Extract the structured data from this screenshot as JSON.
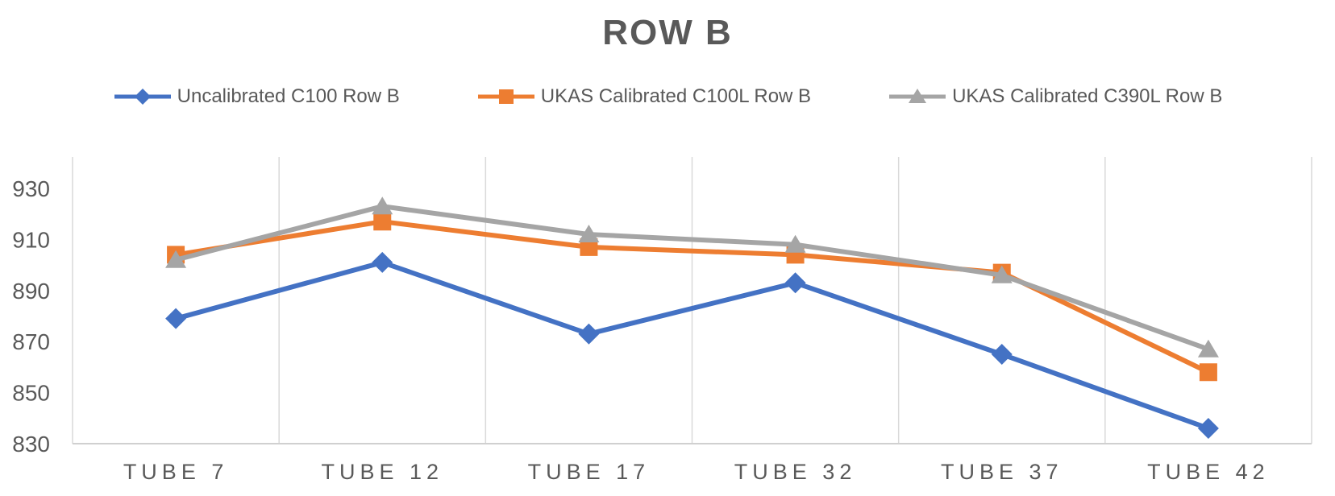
{
  "chart_data": {
    "type": "line",
    "title": "ROW B",
    "categories": [
      "TUBE 7",
      "TUBE 12",
      "TUBE 17",
      "TUBE 32",
      "TUBE 37",
      "TUBE 42"
    ],
    "series": [
      {
        "name": "Uncalibrated C100 Row B",
        "marker": "diamond",
        "color": "#4472C4",
        "values": [
          879,
          901,
          873,
          893,
          865,
          836
        ]
      },
      {
        "name": "UKAS Calibrated C100L Row B",
        "marker": "square",
        "color": "#ED7D31",
        "values": [
          904,
          917,
          907,
          904,
          897,
          858
        ]
      },
      {
        "name": "UKAS Calibrated C390L Row B",
        "marker": "triangle",
        "color": "#A5A5A5",
        "values": [
          902,
          923,
          912,
          908,
          896,
          867
        ]
      }
    ],
    "xlabel": "",
    "ylabel": "",
    "y_axis": {
      "min": 830,
      "max": 930,
      "tick_step": 20,
      "ticks": [
        830,
        850,
        870,
        890,
        910,
        930
      ]
    },
    "legend_position": "top",
    "grid": "vertical-only",
    "colors": {
      "title": "#595959",
      "axis_labels": "#595959",
      "gridlines": "#D9D9D9",
      "axis_line": "#D0D0D0",
      "background": "#FFFFFF"
    }
  }
}
